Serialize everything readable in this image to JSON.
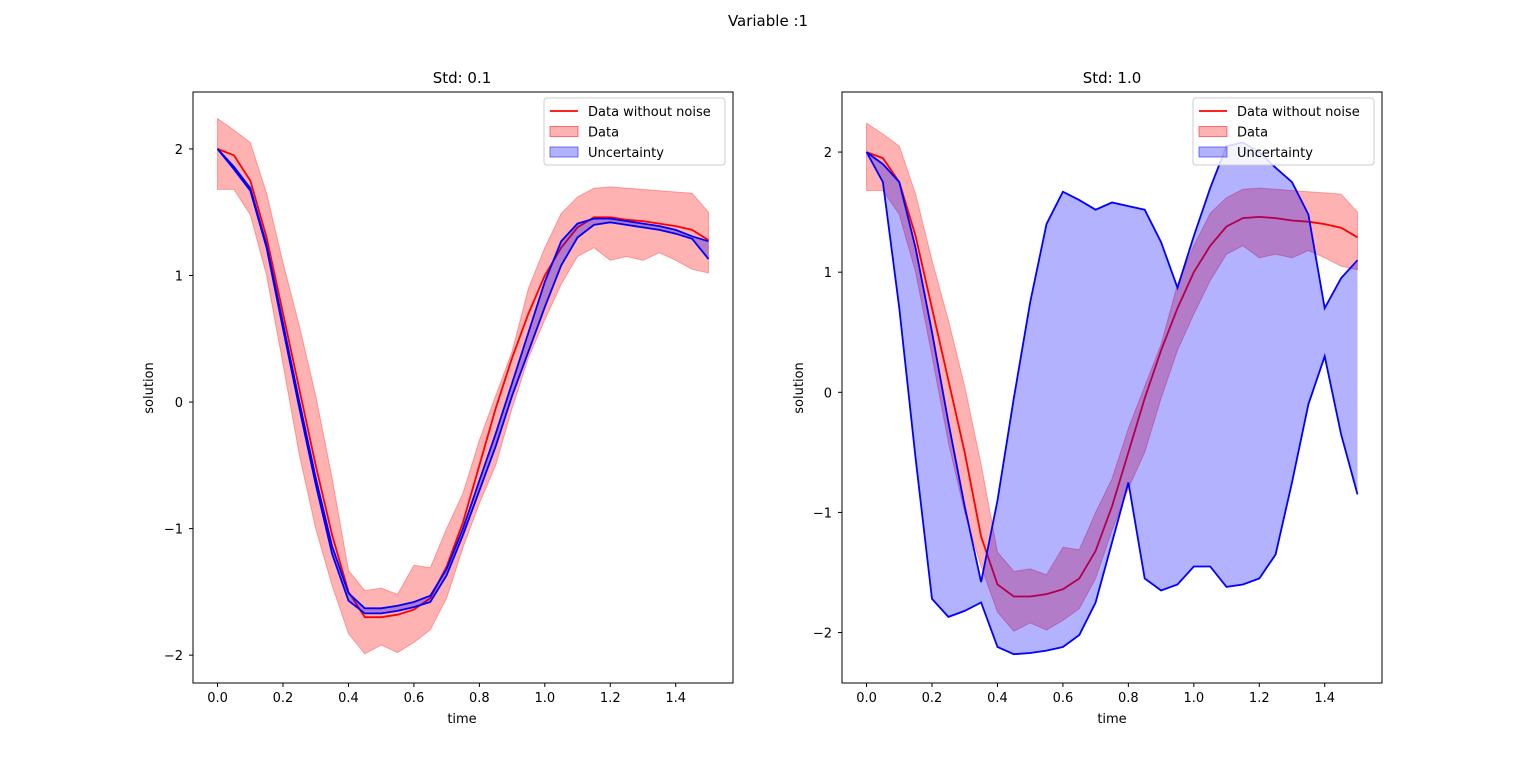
{
  "figure": {
    "suptitle": "Variable :1"
  },
  "chart_data": [
    {
      "type": "line",
      "title": "Std: 0.1",
      "xlabel": "time",
      "ylabel": "solution",
      "xlim": [
        -0.075,
        1.575
      ],
      "ylim": [
        -2.22,
        2.45
      ],
      "xticks": [
        0.0,
        0.2,
        0.4,
        0.6,
        0.8,
        1.0,
        1.2,
        1.4
      ],
      "xtick_labels": [
        "0.0",
        "0.2",
        "0.4",
        "0.6",
        "0.8",
        "1.0",
        "1.2",
        "1.4"
      ],
      "yticks": [
        -2,
        -1,
        0,
        1,
        2
      ],
      "ytick_labels": [
        "−2",
        "−1",
        "0",
        "1",
        "2"
      ],
      "grid": false,
      "legend": {
        "position": "upper-right",
        "entries": [
          "Data without noise",
          "Data",
          "Uncertainty"
        ]
      },
      "x": [
        0.0,
        0.05,
        0.1,
        0.15,
        0.2,
        0.25,
        0.3,
        0.35,
        0.4,
        0.45,
        0.5,
        0.55,
        0.6,
        0.65,
        0.7,
        0.75,
        0.8,
        0.85,
        0.9,
        0.95,
        1.0,
        1.05,
        1.1,
        1.15,
        1.2,
        1.25,
        1.3,
        1.35,
        1.4,
        1.45,
        1.5
      ],
      "series": [
        {
          "name": "Data without noise",
          "kind": "line",
          "color": "#ff0000",
          "values": [
            2.0,
            1.95,
            1.75,
            1.3,
            0.7,
            0.1,
            -0.5,
            -1.05,
            -1.5,
            -1.7,
            -1.7,
            -1.68,
            -1.64,
            -1.55,
            -1.3,
            -0.95,
            -0.5,
            -0.05,
            0.35,
            0.7,
            1.0,
            1.22,
            1.38,
            1.46,
            1.46,
            1.44,
            1.43,
            1.41,
            1.39,
            1.36,
            1.28
          ]
        },
        {
          "name": "Data",
          "kind": "band",
          "color": "#ff0000",
          "lower": [
            1.68,
            1.68,
            1.48,
            1.0,
            0.3,
            -0.42,
            -1.0,
            -1.45,
            -1.83,
            -1.99,
            -1.92,
            -1.98,
            -1.9,
            -1.8,
            -1.55,
            -1.15,
            -0.8,
            -0.5,
            -0.05,
            0.35,
            0.65,
            0.93,
            1.15,
            1.22,
            1.12,
            1.15,
            1.12,
            1.18,
            1.12,
            1.05,
            1.02
          ],
          "upper": [
            2.24,
            2.15,
            2.05,
            1.65,
            1.1,
            0.6,
            0.05,
            -0.6,
            -1.33,
            -1.49,
            -1.47,
            -1.52,
            -1.29,
            -1.31,
            -1.0,
            -0.72,
            -0.3,
            0.05,
            0.4,
            0.9,
            1.22,
            1.49,
            1.62,
            1.69,
            1.7,
            1.69,
            1.68,
            1.67,
            1.66,
            1.65,
            1.5
          ]
        },
        {
          "name": "Uncertainty",
          "kind": "band",
          "color": "#0000ff",
          "lower": [
            2.0,
            1.84,
            1.67,
            1.22,
            0.58,
            -0.05,
            -0.65,
            -1.2,
            -1.57,
            -1.67,
            -1.67,
            -1.65,
            -1.62,
            -1.58,
            -1.37,
            -1.05,
            -0.7,
            -0.35,
            0.05,
            0.4,
            0.75,
            1.08,
            1.3,
            1.4,
            1.42,
            1.4,
            1.38,
            1.36,
            1.33,
            1.29,
            1.13
          ]
        },
        {
          "name": "Uncertainty upper",
          "kind": "band-edge",
          "color": "#0000ff",
          "values": [
            2.0,
            1.86,
            1.69,
            1.24,
            0.62,
            0.0,
            -0.6,
            -1.14,
            -1.51,
            -1.63,
            -1.63,
            -1.61,
            -1.58,
            -1.53,
            -1.32,
            -1.0,
            -0.62,
            -0.25,
            0.15,
            0.55,
            0.95,
            1.27,
            1.41,
            1.45,
            1.45,
            1.43,
            1.41,
            1.39,
            1.36,
            1.31,
            1.27
          ]
        }
      ]
    },
    {
      "type": "line",
      "title": "Std: 1.0",
      "xlabel": "time",
      "ylabel": "solution",
      "xlim": [
        -0.075,
        1.575
      ],
      "ylim": [
        -2.42,
        2.5
      ],
      "xticks": [
        0.0,
        0.2,
        0.4,
        0.6,
        0.8,
        1.0,
        1.2,
        1.4
      ],
      "xtick_labels": [
        "0.0",
        "0.2",
        "0.4",
        "0.6",
        "0.8",
        "1.0",
        "1.2",
        "1.4"
      ],
      "yticks": [
        -2,
        -1,
        0,
        1,
        2
      ],
      "ytick_labels": [
        "−2",
        "−1",
        "0",
        "1",
        "2"
      ],
      "grid": false,
      "legend": {
        "position": "upper-right",
        "entries": [
          "Data without noise",
          "Data",
          "Uncertainty"
        ]
      },
      "x": [
        0.0,
        0.05,
        0.1,
        0.15,
        0.2,
        0.25,
        0.3,
        0.35,
        0.4,
        0.45,
        0.5,
        0.55,
        0.6,
        0.65,
        0.7,
        0.75,
        0.8,
        0.85,
        0.9,
        0.95,
        1.0,
        1.05,
        1.1,
        1.15,
        1.2,
        1.25,
        1.3,
        1.35,
        1.4,
        1.45,
        1.5
      ],
      "series": [
        {
          "name": "Data without noise",
          "kind": "line",
          "color": "#ff0000",
          "values": [
            2.0,
            1.95,
            1.75,
            1.3,
            0.7,
            0.1,
            -0.5,
            -1.2,
            -1.6,
            -1.7,
            -1.7,
            -1.68,
            -1.64,
            -1.55,
            -1.32,
            -0.95,
            -0.5,
            -0.05,
            0.35,
            0.7,
            1.0,
            1.22,
            1.38,
            1.45,
            1.46,
            1.45,
            1.43,
            1.42,
            1.4,
            1.37,
            1.29
          ]
        },
        {
          "name": "Data",
          "kind": "band",
          "color": "#ff0000",
          "lower": [
            1.68,
            1.68,
            1.48,
            1.0,
            0.3,
            -0.42,
            -1.0,
            -1.45,
            -1.83,
            -1.99,
            -1.92,
            -1.98,
            -1.9,
            -1.8,
            -1.55,
            -1.15,
            -0.8,
            -0.5,
            -0.05,
            0.35,
            0.65,
            0.93,
            1.15,
            1.22,
            1.12,
            1.15,
            1.12,
            1.18,
            1.12,
            1.05,
            1.02
          ],
          "upper": [
            2.24,
            2.15,
            2.05,
            1.65,
            1.1,
            0.6,
            0.05,
            -0.6,
            -1.33,
            -1.49,
            -1.47,
            -1.52,
            -1.29,
            -1.31,
            -1.0,
            -0.72,
            -0.3,
            0.05,
            0.4,
            0.9,
            1.22,
            1.49,
            1.62,
            1.69,
            1.7,
            1.69,
            1.68,
            1.67,
            1.66,
            1.65,
            1.5
          ]
        },
        {
          "name": "Uncertainty",
          "kind": "band",
          "color": "#0000ff",
          "upper": [
            2.0,
            1.9,
            1.75,
            1.2,
            0.5,
            -0.25,
            -0.95,
            -1.58,
            -0.9,
            -0.05,
            0.75,
            1.4,
            1.67,
            1.6,
            1.52,
            1.58,
            1.55,
            1.52,
            1.25,
            0.87,
            1.3,
            1.7,
            2.05,
            2.08,
            2.0,
            1.87,
            1.75,
            1.48,
            0.7,
            0.95,
            1.1
          ],
          "lower": [
            2.0,
            1.75,
            0.7,
            -0.55,
            -1.72,
            -1.87,
            -1.82,
            -1.75,
            -2.12,
            -2.18,
            -2.17,
            -2.15,
            -2.12,
            -2.02,
            -1.75,
            -1.25,
            -0.75,
            -1.55,
            -1.65,
            -1.6,
            -1.45,
            -1.45,
            -1.62,
            -1.6,
            -1.55,
            -1.35,
            -0.75,
            -0.1,
            0.3,
            -0.35,
            -0.85
          ]
        }
      ]
    }
  ]
}
